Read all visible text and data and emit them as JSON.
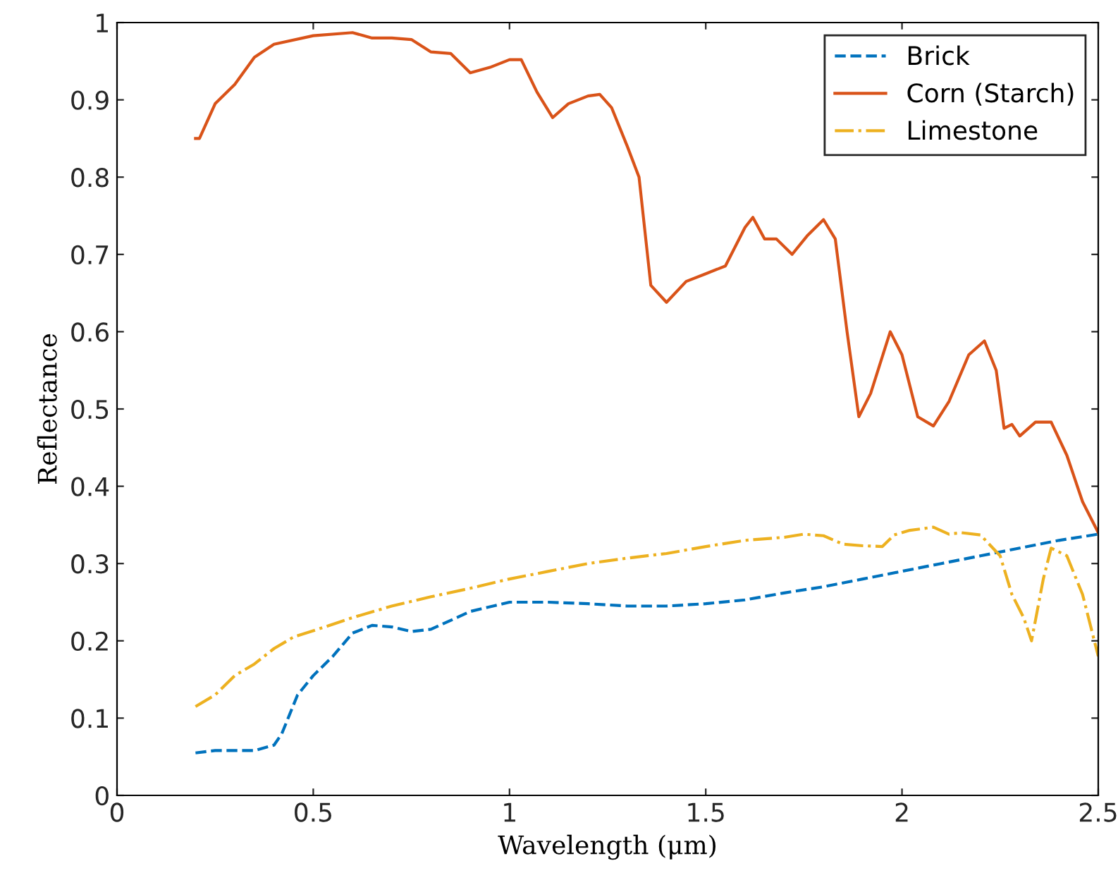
{
  "chart_data": {
    "type": "line",
    "xlabel": "Wavelength (μm)",
    "ylabel": "Reflectance",
    "xlim": [
      0,
      2.5
    ],
    "ylim": [
      0,
      1
    ],
    "xticks": [
      0,
      0.5,
      1,
      1.5,
      2,
      2.5
    ],
    "yticks": [
      0,
      0.1,
      0.2,
      0.3,
      0.4,
      0.5,
      0.6,
      0.7,
      0.8,
      0.9,
      1
    ],
    "grid": false,
    "legend": "top right",
    "marker": "none",
    "series": [
      {
        "name": "Brick",
        "color": "#0072bd",
        "line_style": "dashed",
        "x": [
          0.2,
          0.25,
          0.35,
          0.4,
          0.42,
          0.46,
          0.5,
          0.55,
          0.6,
          0.65,
          0.7,
          0.75,
          0.8,
          0.9,
          1.0,
          1.1,
          1.2,
          1.3,
          1.4,
          1.5,
          1.6,
          1.7,
          1.8,
          1.9,
          2.0,
          2.1,
          2.2,
          2.3,
          2.4,
          2.5
        ],
        "values": [
          0.055,
          0.058,
          0.058,
          0.065,
          0.08,
          0.13,
          0.155,
          0.18,
          0.21,
          0.22,
          0.218,
          0.212,
          0.215,
          0.238,
          0.25,
          0.25,
          0.248,
          0.245,
          0.245,
          0.248,
          0.253,
          0.262,
          0.27,
          0.28,
          0.29,
          0.3,
          0.31,
          0.32,
          0.33,
          0.338
        ]
      },
      {
        "name": "Corn (Starch)",
        "color": "#d95319",
        "line_style": "solid",
        "x": [
          0.2,
          0.21,
          0.25,
          0.3,
          0.35,
          0.4,
          0.5,
          0.6,
          0.65,
          0.7,
          0.75,
          0.8,
          0.85,
          0.9,
          0.95,
          1.0,
          1.03,
          1.07,
          1.11,
          1.15,
          1.2,
          1.23,
          1.26,
          1.3,
          1.33,
          1.36,
          1.4,
          1.45,
          1.5,
          1.55,
          1.6,
          1.62,
          1.65,
          1.68,
          1.72,
          1.76,
          1.8,
          1.83,
          1.86,
          1.89,
          1.92,
          1.97,
          2.0,
          2.04,
          2.08,
          2.12,
          2.17,
          2.21,
          2.24,
          2.26,
          2.28,
          2.3,
          2.34,
          2.38,
          2.42,
          2.46,
          2.5
        ],
        "values": [
          0.85,
          0.85,
          0.895,
          0.92,
          0.955,
          0.972,
          0.983,
          0.987,
          0.98,
          0.98,
          0.978,
          0.962,
          0.96,
          0.935,
          0.942,
          0.952,
          0.952,
          0.91,
          0.877,
          0.895,
          0.905,
          0.907,
          0.89,
          0.84,
          0.8,
          0.66,
          0.638,
          0.665,
          0.675,
          0.685,
          0.735,
          0.748,
          0.72,
          0.72,
          0.7,
          0.725,
          0.745,
          0.72,
          0.6,
          0.49,
          0.52,
          0.6,
          0.57,
          0.49,
          0.478,
          0.51,
          0.57,
          0.588,
          0.55,
          0.475,
          0.48,
          0.465,
          0.483,
          0.483,
          0.44,
          0.38,
          0.34
        ]
      },
      {
        "name": "Limestone",
        "color": "#edb120",
        "line_style": "dashdot",
        "x": [
          0.2,
          0.25,
          0.3,
          0.35,
          0.4,
          0.45,
          0.5,
          0.6,
          0.7,
          0.8,
          0.9,
          1.0,
          1.1,
          1.2,
          1.3,
          1.4,
          1.5,
          1.6,
          1.7,
          1.75,
          1.8,
          1.85,
          1.9,
          1.95,
          1.98,
          2.02,
          2.08,
          2.12,
          2.15,
          2.2,
          2.25,
          2.28,
          2.31,
          2.33,
          2.36,
          2.38,
          2.42,
          2.46,
          2.5
        ],
        "values": [
          0.115,
          0.13,
          0.155,
          0.17,
          0.19,
          0.205,
          0.213,
          0.23,
          0.245,
          0.257,
          0.268,
          0.28,
          0.29,
          0.3,
          0.307,
          0.313,
          0.322,
          0.33,
          0.334,
          0.338,
          0.336,
          0.325,
          0.323,
          0.322,
          0.337,
          0.343,
          0.347,
          0.338,
          0.34,
          0.337,
          0.31,
          0.26,
          0.23,
          0.2,
          0.28,
          0.32,
          0.31,
          0.26,
          0.18
        ]
      }
    ]
  }
}
